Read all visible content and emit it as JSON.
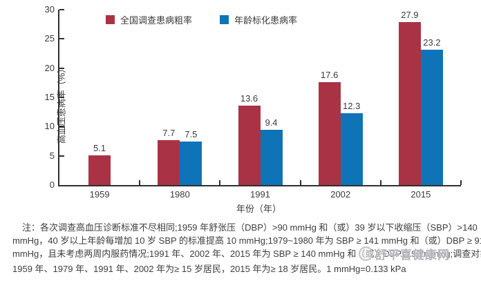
{
  "chart_data": {
    "type": "bar",
    "categories": [
      "1959",
      "1980",
      "1991",
      "2002",
      "2015"
    ],
    "series": [
      {
        "name": "全国调查患病粗率",
        "color": "#a93344",
        "values": [
          5.1,
          7.7,
          13.6,
          17.6,
          27.9
        ]
      },
      {
        "name": "年龄标化患病率",
        "color": "#0f73b8",
        "values": [
          null,
          7.5,
          9.4,
          12.3,
          23.2
        ]
      }
    ],
    "title": "",
    "xlabel": "年份（年）",
    "ylabel": "高血压患病率（%）",
    "ylim": [
      0,
      30
    ],
    "yticks": [
      0,
      5,
      10,
      15,
      20,
      25,
      30
    ],
    "grid": false,
    "legend_position": "top-inside",
    "bar_value_labels": true
  },
  "axis": {
    "line_color": "#2e2e2e",
    "text_color": "#3a3a3a"
  },
  "note": {
    "lines": [
      "注：各次调查高血压诊断标准不尽相同;1959 年舒张压（DBP）>90 mmHg 和（或）39 岁以下收缩压（SBP）>140",
      "mmHg，40 岁以上年龄每增加 10 岁 SBP 的标准提高 10 mmHg;1979~1980 年为 SBP ≥ 141 mmHg 和（或）DBP ≥ 91",
      "mmHg，且未考虑两周内服药情况;1991 年、2002 年、2015 年为 SBP ≥ 140 mmHg 和（或）DBP ≥ 90 mmHg;调查对象:",
      "1959 年、1979 年、1991 年、2002 年为≥ 15 岁居民，2015 年为≥ 18 岁居民。1 mmHg=0.133 kPa"
    ]
  },
  "watermark": {
    "text": "舒平喜健康网"
  }
}
